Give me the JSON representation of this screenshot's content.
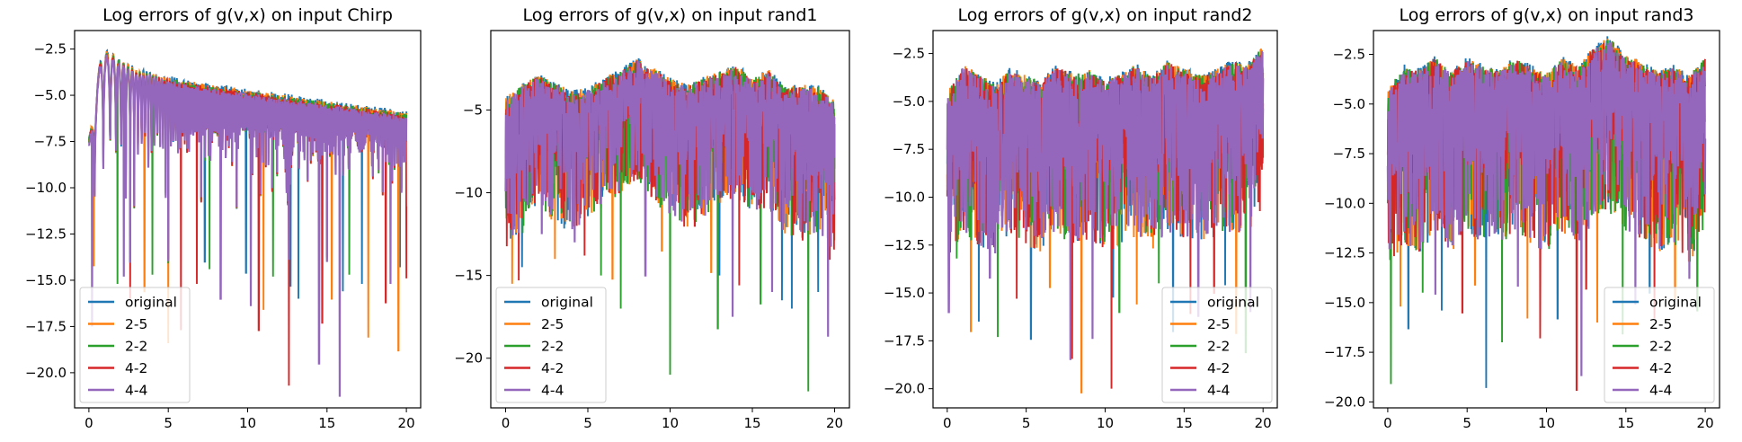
{
  "chart_data": [
    {
      "type": "line",
      "title": "Log errors of g(v,x) on input Chirp",
      "xlabel": "",
      "ylabel": "",
      "xlim": [
        -0.9,
        20.9
      ],
      "ylim": [
        -21.9,
        -1.5
      ],
      "xticks": [
        0,
        5,
        10,
        15,
        20
      ],
      "xtick_labels": [
        "0",
        "5",
        "10",
        "15",
        "20"
      ],
      "yticks": [
        -2.5,
        -5.0,
        -7.5,
        -10.0,
        -12.5,
        -15.0,
        -17.5,
        -20.0
      ],
      "ytick_labels": [
        "−2.5",
        "−5.0",
        "−7.5",
        "−10.0",
        "−12.5",
        "−15.0",
        "−17.5",
        "−20.0"
      ],
      "legend_position": "lower-left",
      "pattern": "chirp",
      "envelope": {
        "x": [
          0,
          0.8,
          1.0,
          3,
          6,
          10,
          15,
          20
        ],
        "top": [
          -7.5,
          -2.6,
          -2.6,
          -3.7,
          -4.3,
          -4.8,
          -5.4,
          -6.0
        ]
      },
      "floor": -13.5,
      "series": [
        {
          "name": "original",
          "color": "#1f77b4",
          "dips": [
            [
              13.2,
              -16.0
            ],
            [
              16.0,
              -15.6
            ],
            [
              12.7,
              -15.3
            ],
            [
              17.2,
              -15.2
            ],
            [
              7.3,
              -14.0
            ],
            [
              19.6,
              -14.3
            ],
            [
              9.9,
              -14.6
            ]
          ]
        },
        {
          "name": "2-5",
          "color": "#ff7f0e",
          "dips": [
            [
              0.3,
              -14.2
            ],
            [
              5.0,
              -18.4
            ],
            [
              15.3,
              -16.0
            ],
            [
              17.6,
              -18.1
            ],
            [
              19.5,
              -18.8
            ],
            [
              3.5,
              -15.6
            ],
            [
              11.0,
              -16.6
            ]
          ]
        },
        {
          "name": "2-2",
          "color": "#2ca02c",
          "dips": [
            [
              4.0,
              -14.7
            ],
            [
              7.6,
              -14.4
            ],
            [
              11.6,
              -14.8
            ],
            [
              1.8,
              -15.2
            ],
            [
              16.4,
              -14.7
            ]
          ]
        },
        {
          "name": "4-2",
          "color": "#d62728",
          "dips": [
            [
              12.6,
              -20.7
            ],
            [
              10.7,
              -17.7
            ],
            [
              2.6,
              -16.0
            ],
            [
              5.8,
              -17.7
            ],
            [
              6.8,
              -15.2
            ],
            [
              14.7,
              -17.3
            ],
            [
              18.7,
              -16.2
            ],
            [
              20.0,
              -14.9
            ]
          ]
        },
        {
          "name": "4-4",
          "color": "#9467bd",
          "dips": [
            [
              15.8,
              -21.3
            ],
            [
              14.5,
              -19.5
            ],
            [
              10.2,
              -16.4
            ],
            [
              8.3,
              -16.0
            ],
            [
              2.2,
              -14.8
            ],
            [
              19.0,
              -15.2
            ],
            [
              0.2,
              -17.5
            ]
          ]
        }
      ]
    },
    {
      "type": "line",
      "title": "Log errors of g(v,x) on input rand1",
      "xlabel": "",
      "ylabel": "",
      "xlim": [
        -0.9,
        20.9
      ],
      "ylim": [
        -23.0,
        -0.2
      ],
      "xticks": [
        0,
        5,
        10,
        15,
        20
      ],
      "xtick_labels": [
        "0",
        "5",
        "10",
        "15",
        "20"
      ],
      "yticks": [
        -5,
        -10,
        -15,
        -20
      ],
      "ytick_labels": [
        "−5",
        "−10",
        "−15",
        "−20"
      ],
      "legend_position": "lower-left",
      "pattern": "random",
      "profile": {
        "x": [
          0,
          1,
          2,
          3,
          4,
          5,
          6,
          7,
          8,
          9,
          10,
          11,
          12,
          13,
          14,
          15,
          16,
          17,
          18,
          19,
          20
        ],
        "top": [
          -4.2,
          -3.4,
          -2.8,
          -3.3,
          -3.8,
          -3.6,
          -3.0,
          -2.5,
          -1.8,
          -2.4,
          -3.0,
          -3.4,
          -3.0,
          -2.6,
          -2.2,
          -3.0,
          -2.5,
          -3.6,
          -3.4,
          -3.5,
          -4.4
        ],
        "mid": [
          -8.5,
          -7.5,
          -6.0,
          -6.8,
          -7.5,
          -6.5,
          -5.8,
          -5.0,
          -4.2,
          -5.5,
          -6.5,
          -7.2,
          -6.5,
          -5.8,
          -5.2,
          -6.5,
          -6.0,
          -7.5,
          -8.0,
          -7.5,
          -8.5
        ]
      },
      "series": [
        {
          "name": "original",
          "color": "#1f77b4",
          "dips": [
            [
              17.4,
              -17.0
            ],
            [
              16.8,
              -16.5
            ],
            [
              19.0,
              -16.0
            ],
            [
              1.0,
              -14.5
            ],
            [
              13.0,
              -15.0
            ]
          ]
        },
        {
          "name": "2-5",
          "color": "#ff7f0e",
          "dips": [
            [
              3.0,
              -14.0
            ],
            [
              6.5,
              -15.2
            ],
            [
              9.5,
              -13.5
            ],
            [
              12.5,
              -14.8
            ],
            [
              0.4,
              -15.5
            ]
          ]
        },
        {
          "name": "2-2",
          "color": "#2ca02c",
          "dips": [
            [
              10.0,
              -21.0
            ],
            [
              18.4,
              -22.0
            ],
            [
              7.0,
              -17.0
            ],
            [
              12.9,
              -18.2
            ],
            [
              5.8,
              -15.0
            ],
            [
              15.5,
              -16.7
            ]
          ]
        },
        {
          "name": "4-2",
          "color": "#d62728",
          "dips": [
            [
              0.8,
              -15.3
            ],
            [
              4.8,
              -13.8
            ],
            [
              11.5,
              -12.0
            ],
            [
              14.2,
              -15.6
            ],
            [
              19.7,
              -14.0
            ]
          ]
        },
        {
          "name": "4-4",
          "color": "#9467bd",
          "dips": [
            [
              19.6,
              -18.7
            ],
            [
              13.8,
              -17.5
            ],
            [
              16.2,
              -16.0
            ],
            [
              8.5,
              -15.0
            ],
            [
              2.2,
              -12.5
            ],
            [
              4.2,
              -13.0
            ]
          ]
        }
      ]
    },
    {
      "type": "line",
      "title": "Log errors of g(v,x) on input rand2",
      "xlabel": "",
      "ylabel": "",
      "xlim": [
        -0.9,
        20.9
      ],
      "ylim": [
        -21.0,
        -1.3
      ],
      "xticks": [
        0,
        5,
        10,
        15,
        20
      ],
      "xtick_labels": [
        "0",
        "5",
        "10",
        "15",
        "20"
      ],
      "yticks": [
        -2.5,
        -5.0,
        -7.5,
        -10.0,
        -12.5,
        -15.0,
        -17.5,
        -20.0
      ],
      "ytick_labels": [
        "−2.5",
        "−5.0",
        "−7.5",
        "−10.0",
        "−12.5",
        "−15.0",
        "−17.5",
        "−20.0"
      ],
      "legend_position": "lower-right",
      "pattern": "random",
      "profile": {
        "x": [
          0,
          1,
          2,
          3,
          4,
          5,
          6,
          7,
          8,
          9,
          10,
          11,
          12,
          13,
          14,
          15,
          16,
          17,
          18,
          19,
          20
        ],
        "top": [
          -4.5,
          -3.0,
          -3.5,
          -4.0,
          -3.2,
          -3.6,
          -3.8,
          -3.0,
          -3.5,
          -3.3,
          -3.8,
          -3.4,
          -3.0,
          -3.6,
          -2.8,
          -3.2,
          -3.5,
          -3.3,
          -2.8,
          -3.0,
          -2.0
        ],
        "mid": [
          -8.5,
          -7.0,
          -7.5,
          -8.0,
          -7.0,
          -7.5,
          -8.0,
          -7.0,
          -7.5,
          -7.2,
          -8.0,
          -7.5,
          -7.0,
          -7.8,
          -6.8,
          -7.2,
          -7.5,
          -7.2,
          -6.8,
          -7.0,
          -5.5
        ]
      },
      "series": [
        {
          "name": "original",
          "color": "#1f77b4",
          "dips": [
            [
              2.0,
              -16.5
            ],
            [
              5.3,
              -17.4
            ],
            [
              10.5,
              -15.2
            ],
            [
              14.3,
              -17.0
            ],
            [
              17.6,
              -14.6
            ]
          ]
        },
        {
          "name": "2-5",
          "color": "#ff7f0e",
          "dips": [
            [
              8.5,
              -20.2
            ],
            [
              1.5,
              -17.0
            ],
            [
              6.5,
              -14.7
            ],
            [
              12.0,
              -15.6
            ],
            [
              18.3,
              -17.1
            ]
          ]
        },
        {
          "name": "2-2",
          "color": "#2ca02c",
          "dips": [
            [
              3.2,
              -17.3
            ],
            [
              10.9,
              -16.0
            ],
            [
              18.9,
              -18.1
            ],
            [
              13.4,
              -14.5
            ],
            [
              0.6,
              -13.2
            ]
          ]
        },
        {
          "name": "4-2",
          "color": "#d62728",
          "dips": [
            [
              10.4,
              -20.0
            ],
            [
              4.4,
              -15.3
            ],
            [
              7.9,
              -18.4
            ],
            [
              15.4,
              -16.1
            ],
            [
              16.9,
              -15.0
            ]
          ]
        },
        {
          "name": "4-4",
          "color": "#9467bd",
          "dips": [
            [
              0.1,
              -16.0
            ],
            [
              7.8,
              -18.5
            ],
            [
              9.2,
              -17.4
            ],
            [
              19.2,
              -16.0
            ],
            [
              15.9,
              -16.2
            ],
            [
              2.7,
              -14.2
            ]
          ]
        }
      ]
    },
    {
      "type": "line",
      "title": "Log errors of g(v,x) on input rand3",
      "xlabel": "",
      "ylabel": "",
      "xlim": [
        -0.9,
        20.9
      ],
      "ylim": [
        -20.3,
        -1.3
      ],
      "xticks": [
        0,
        5,
        10,
        15,
        20
      ],
      "xtick_labels": [
        "0",
        "5",
        "10",
        "15",
        "20"
      ],
      "yticks": [
        -2.5,
        -5.0,
        -7.5,
        -10.0,
        -12.5,
        -15.0,
        -17.5,
        -20.0
      ],
      "ytick_labels": [
        "−2.5",
        "−5.0",
        "−7.5",
        "−10.0",
        "−12.5",
        "−15.0",
        "−17.5",
        "−20.0"
      ],
      "legend_position": "lower-right",
      "pattern": "random",
      "profile": {
        "x": [
          0,
          1,
          2,
          3,
          4,
          5,
          6,
          7,
          8,
          9,
          10,
          11,
          12,
          13,
          14,
          15,
          16,
          17,
          18,
          19,
          20
        ],
        "top": [
          -4.2,
          -3.0,
          -3.2,
          -2.5,
          -3.3,
          -2.6,
          -3.0,
          -3.2,
          -2.6,
          -3.0,
          -3.4,
          -2.6,
          -3.0,
          -2.0,
          -1.5,
          -2.5,
          -2.8,
          -3.3,
          -3.0,
          -3.5,
          -2.5
        ],
        "mid": [
          -8.5,
          -7.0,
          -7.5,
          -6.5,
          -7.5,
          -6.5,
          -7.0,
          -7.2,
          -6.5,
          -7.0,
          -7.5,
          -6.5,
          -7.0,
          -6.0,
          -5.5,
          -6.5,
          -6.8,
          -7.5,
          -7.0,
          -8.0,
          -6.5
        ]
      },
      "series": [
        {
          "name": "original",
          "color": "#1f77b4",
          "dips": [
            [
              6.2,
              -19.3
            ],
            [
              1.3,
              -16.3
            ],
            [
              3.4,
              -15.4
            ],
            [
              10.7,
              -15.8
            ],
            [
              16.5,
              -14.5
            ]
          ]
        },
        {
          "name": "2-5",
          "color": "#ff7f0e",
          "dips": [
            [
              0.8,
              -15.2
            ],
            [
              5.5,
              -14.1
            ],
            [
              8.8,
              -15.8
            ],
            [
              13.2,
              -16.0
            ],
            [
              18.1,
              -14.8
            ]
          ]
        },
        {
          "name": "2-2",
          "color": "#2ca02c",
          "dips": [
            [
              0.2,
              -19.1
            ],
            [
              7.2,
              -17.0
            ],
            [
              14.8,
              -16.6
            ],
            [
              19.5,
              -15.4
            ],
            [
              2.2,
              -14.5
            ]
          ]
        },
        {
          "name": "4-2",
          "color": "#d62728",
          "dips": [
            [
              11.9,
              -19.4
            ],
            [
              9.6,
              -16.8
            ],
            [
              4.7,
              -15.5
            ],
            [
              16.8,
              -15.8
            ],
            [
              12.5,
              -14.3
            ]
          ]
        },
        {
          "name": "4-4",
          "color": "#9467bd",
          "dips": [
            [
              12.2,
              -18.7
            ],
            [
              3.0,
              -14.6
            ],
            [
              8.2,
              -14.2
            ],
            [
              15.6,
              -15.1
            ],
            [
              19.0,
              -13.8
            ]
          ]
        }
      ]
    }
  ]
}
